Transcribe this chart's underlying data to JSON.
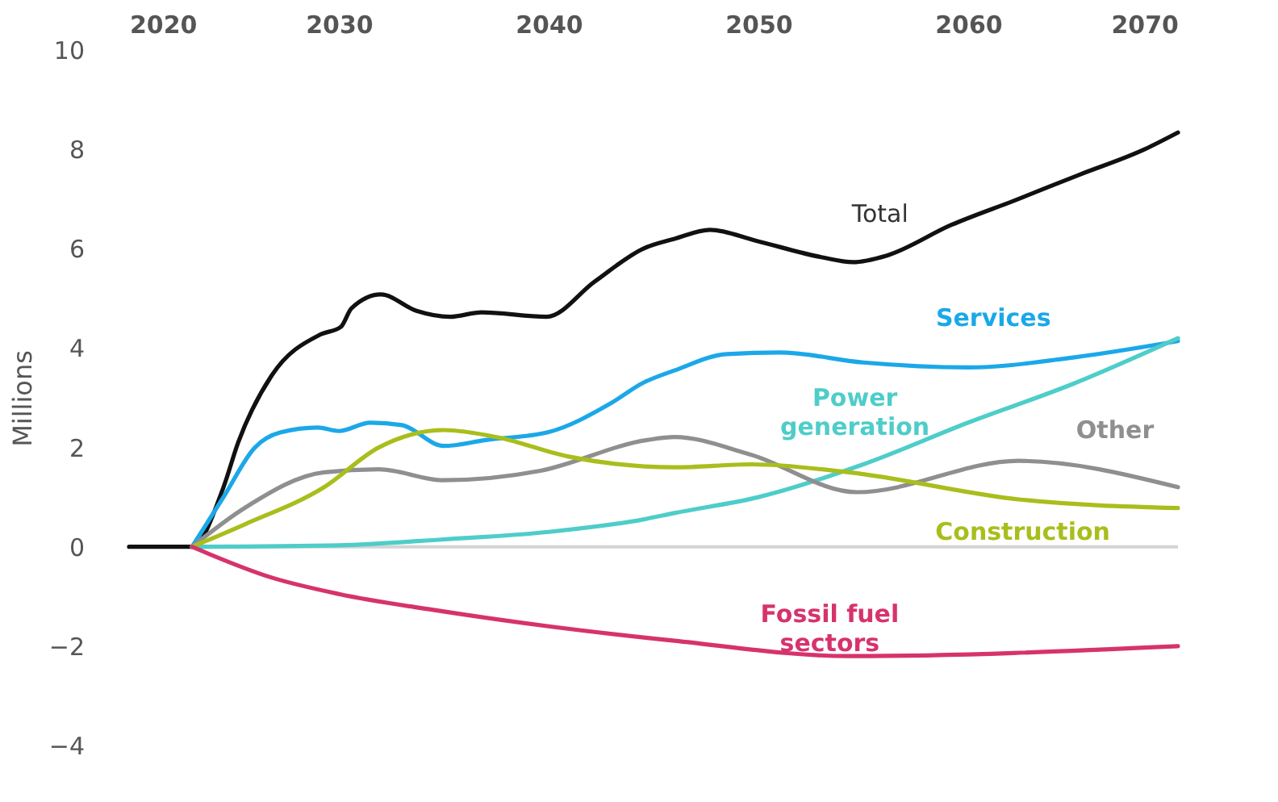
{
  "chart_data": {
    "type": "line",
    "ylabel": "Millions",
    "xlim": [
      2020,
      2070
    ],
    "xticks": [
      2020,
      2030,
      2040,
      2050,
      2060,
      2070
    ],
    "ylim": [
      -4,
      10
    ],
    "yticks": [
      -4,
      -2,
      0,
      2,
      4,
      6,
      8,
      10
    ],
    "grid": false,
    "legend": false,
    "marker": "none",
    "line_style": "solid",
    "ref_lines": [
      {
        "axis": "y",
        "value": 0,
        "color": "#d4d4d4"
      }
    ],
    "series": [
      {
        "name": "Total",
        "color": "#111111",
        "x": [
          2020,
          2023,
          2024.5,
          2025.2,
          2026.8,
          2029.1,
          2030.1,
          2030.6,
          2032,
          2033.7,
          2035.3,
          2036.8,
          2039.9,
          2042.2,
          2044.5,
          2046,
          2047.7,
          2049.9,
          2053,
          2054.5,
          2056.1,
          2059.2,
          2062.2,
          2065.3,
          2068.4,
          2070
        ],
        "values": [
          0,
          0,
          1.2,
          2.1,
          3.45,
          4.27,
          4.43,
          4.8,
          5.08,
          4.75,
          4.63,
          4.72,
          4.63,
          5.34,
          6.0,
          6.2,
          6.38,
          6.16,
          5.83,
          5.73,
          5.86,
          6.48,
          6.97,
          7.49,
          8.0,
          8.34
        ]
      },
      {
        "name": "Services",
        "color": "#1ba8e8",
        "x": [
          2023,
          2024.5,
          2026,
          2027.2,
          2029,
          2030,
          2031.5,
          2033,
          2035,
          2037,
          2040,
          2043,
          2044.5,
          2046,
          2048.5,
          2051,
          2055,
          2060,
          2065,
          2070
        ],
        "values": [
          0,
          1.0,
          2.0,
          2.3,
          2.4,
          2.33,
          2.5,
          2.45,
          2.03,
          2.15,
          2.31,
          2.9,
          3.3,
          3.55,
          3.88,
          3.91,
          3.71,
          3.61,
          3.81,
          4.14
        ]
      },
      {
        "name": "Power generation",
        "color": "#4ecdc9",
        "x": [
          2023,
          2030,
          2035,
          2040,
          2044.5,
          2046,
          2050,
          2055,
          2060,
          2065,
          2070
        ],
        "values": [
          0,
          0.03,
          0.15,
          0.3,
          0.55,
          0.68,
          1.0,
          1.66,
          2.5,
          3.28,
          4.2
        ]
      },
      {
        "name": "Other",
        "color": "#8f8f8f",
        "x": [
          2023,
          2025.5,
          2029.3,
          2031.9,
          2035,
          2039.6,
          2044.7,
          2046,
          2049.6,
          2054.7,
          2062.4,
          2070
        ],
        "values": [
          0,
          0.78,
          1.5,
          1.56,
          1.34,
          1.53,
          2.15,
          2.21,
          1.86,
          1.1,
          1.73,
          1.2
        ]
      },
      {
        "name": "Construction",
        "color": "#a9be1c",
        "x": [
          2023,
          2025.5,
          2029.3,
          2031.9,
          2035,
          2037.6,
          2040.9,
          2046,
          2049.7,
          2054.3,
          2062.5,
          2070
        ],
        "values": [
          0,
          0.45,
          1.2,
          2.0,
          2.35,
          2.2,
          1.82,
          1.6,
          1.66,
          1.5,
          0.95,
          0.78
        ]
      },
      {
        "name": "Fossil fuel sectors",
        "color": "#d6336c",
        "x": [
          2023,
          2026.8,
          2030,
          2034.5,
          2040,
          2046,
          2054.3,
          2070
        ],
        "values": [
          0,
          -0.62,
          -0.95,
          -1.27,
          -1.6,
          -1.89,
          -2.2,
          -2.0
        ]
      }
    ]
  }
}
